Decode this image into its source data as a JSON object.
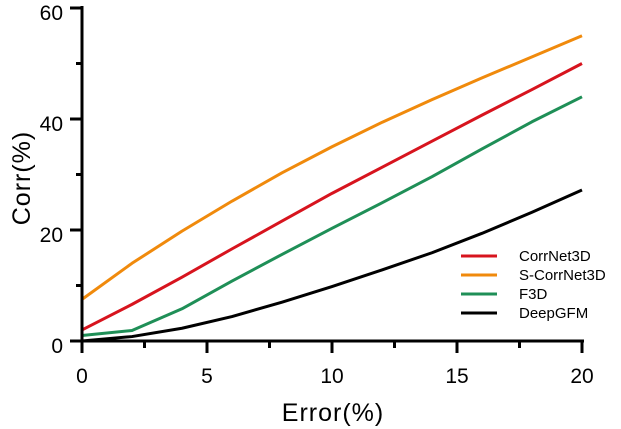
{
  "chart_data": {
    "type": "line",
    "title": "",
    "xlabel": "Error(%)",
    "ylabel": "Corr(%)",
    "xlim": [
      0,
      20
    ],
    "ylim": [
      0,
      60
    ],
    "xticks": [
      0,
      5,
      10,
      15,
      20
    ],
    "xticks_minor": [
      2.5,
      7.5,
      12.5,
      17.5
    ],
    "yticks": [
      0,
      20,
      40,
      60
    ],
    "yticks_minor": [
      10,
      30,
      50
    ],
    "grid": false,
    "legend_position": "lower right",
    "x": [
      0,
      2,
      4,
      6,
      8,
      10,
      12,
      14,
      16,
      18,
      20
    ],
    "series": [
      {
        "name": "CorrNet3D",
        "color": "#d7141e",
        "values": [
          2.0,
          6.6,
          11.5,
          16.6,
          21.6,
          26.6,
          31.3,
          36.0,
          40.7,
          45.3,
          50.0
        ]
      },
      {
        "name": "S-CorrNet3D",
        "color": "#f08a0c",
        "values": [
          7.5,
          14.0,
          19.8,
          25.2,
          30.3,
          35.0,
          39.4,
          43.5,
          47.4,
          51.2,
          55.0
        ]
      },
      {
        "name": "F3D",
        "color": "#1f8f57",
        "values": [
          1.0,
          1.9,
          5.8,
          10.8,
          15.6,
          20.3,
          24.9,
          29.6,
          34.6,
          39.5,
          44.0
        ]
      },
      {
        "name": "DeepGFM",
        "color": "#000000",
        "values": [
          0.0,
          0.8,
          2.3,
          4.4,
          7.0,
          9.8,
          12.8,
          15.9,
          19.4,
          23.2,
          27.2
        ]
      }
    ]
  },
  "axes": {
    "x_title": "Error(%)",
    "y_title": "Corr(%)",
    "x_tick_labels": [
      "0",
      "5",
      "10",
      "15",
      "20"
    ],
    "y_tick_labels": [
      "0",
      "20",
      "40",
      "60"
    ]
  },
  "legend": {
    "items": [
      {
        "label": "CorrNet3D",
        "color": "#d7141e"
      },
      {
        "label": "S-CorrNet3D",
        "color": "#f08a0c"
      },
      {
        "label": "F3D",
        "color": "#1f8f57"
      },
      {
        "label": "DeepGFM",
        "color": "#000000"
      }
    ]
  }
}
